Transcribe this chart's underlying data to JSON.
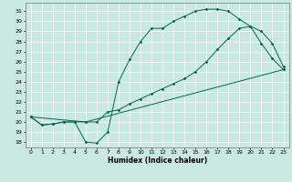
{
  "xlabel": "Humidex (Indice chaleur)",
  "xlim": [
    -0.5,
    23.5
  ],
  "ylim": [
    17.5,
    31.8
  ],
  "yticks": [
    18,
    19,
    20,
    21,
    22,
    23,
    24,
    25,
    26,
    27,
    28,
    29,
    30,
    31
  ],
  "xticks": [
    0,
    1,
    2,
    3,
    4,
    5,
    6,
    7,
    8,
    9,
    10,
    11,
    12,
    13,
    14,
    15,
    16,
    17,
    18,
    19,
    20,
    21,
    22,
    23
  ],
  "bg_color": "#c8e8e0",
  "line_color": "#006655",
  "line1_x": [
    0,
    1,
    2,
    3,
    4,
    5,
    6,
    7,
    8,
    9,
    10,
    11,
    12,
    13,
    14,
    15,
    16,
    17,
    18,
    19,
    20,
    21,
    22,
    23
  ],
  "line1_y": [
    20.5,
    19.7,
    19.8,
    20.0,
    20.0,
    18.0,
    17.9,
    19.0,
    24.0,
    26.2,
    28.0,
    29.3,
    29.3,
    30.0,
    30.5,
    31.0,
    31.2,
    31.2,
    31.0,
    30.2,
    29.5,
    27.8,
    26.3,
    25.2
  ],
  "line2_x": [
    0,
    5,
    23
  ],
  "line2_y": [
    20.5,
    20.0,
    25.2
  ],
  "line3_x": [
    0,
    1,
    2,
    3,
    4,
    5,
    6,
    7,
    8,
    9,
    10,
    11,
    12,
    13,
    14,
    15,
    16,
    17,
    18,
    19,
    20,
    21,
    22,
    23
  ],
  "line3_y": [
    20.5,
    19.7,
    19.8,
    20.0,
    20.0,
    20.0,
    20.0,
    21.0,
    21.2,
    21.8,
    22.3,
    22.8,
    23.3,
    23.8,
    24.3,
    25.0,
    26.0,
    27.2,
    28.3,
    29.3,
    29.5,
    29.0,
    27.8,
    25.5
  ]
}
